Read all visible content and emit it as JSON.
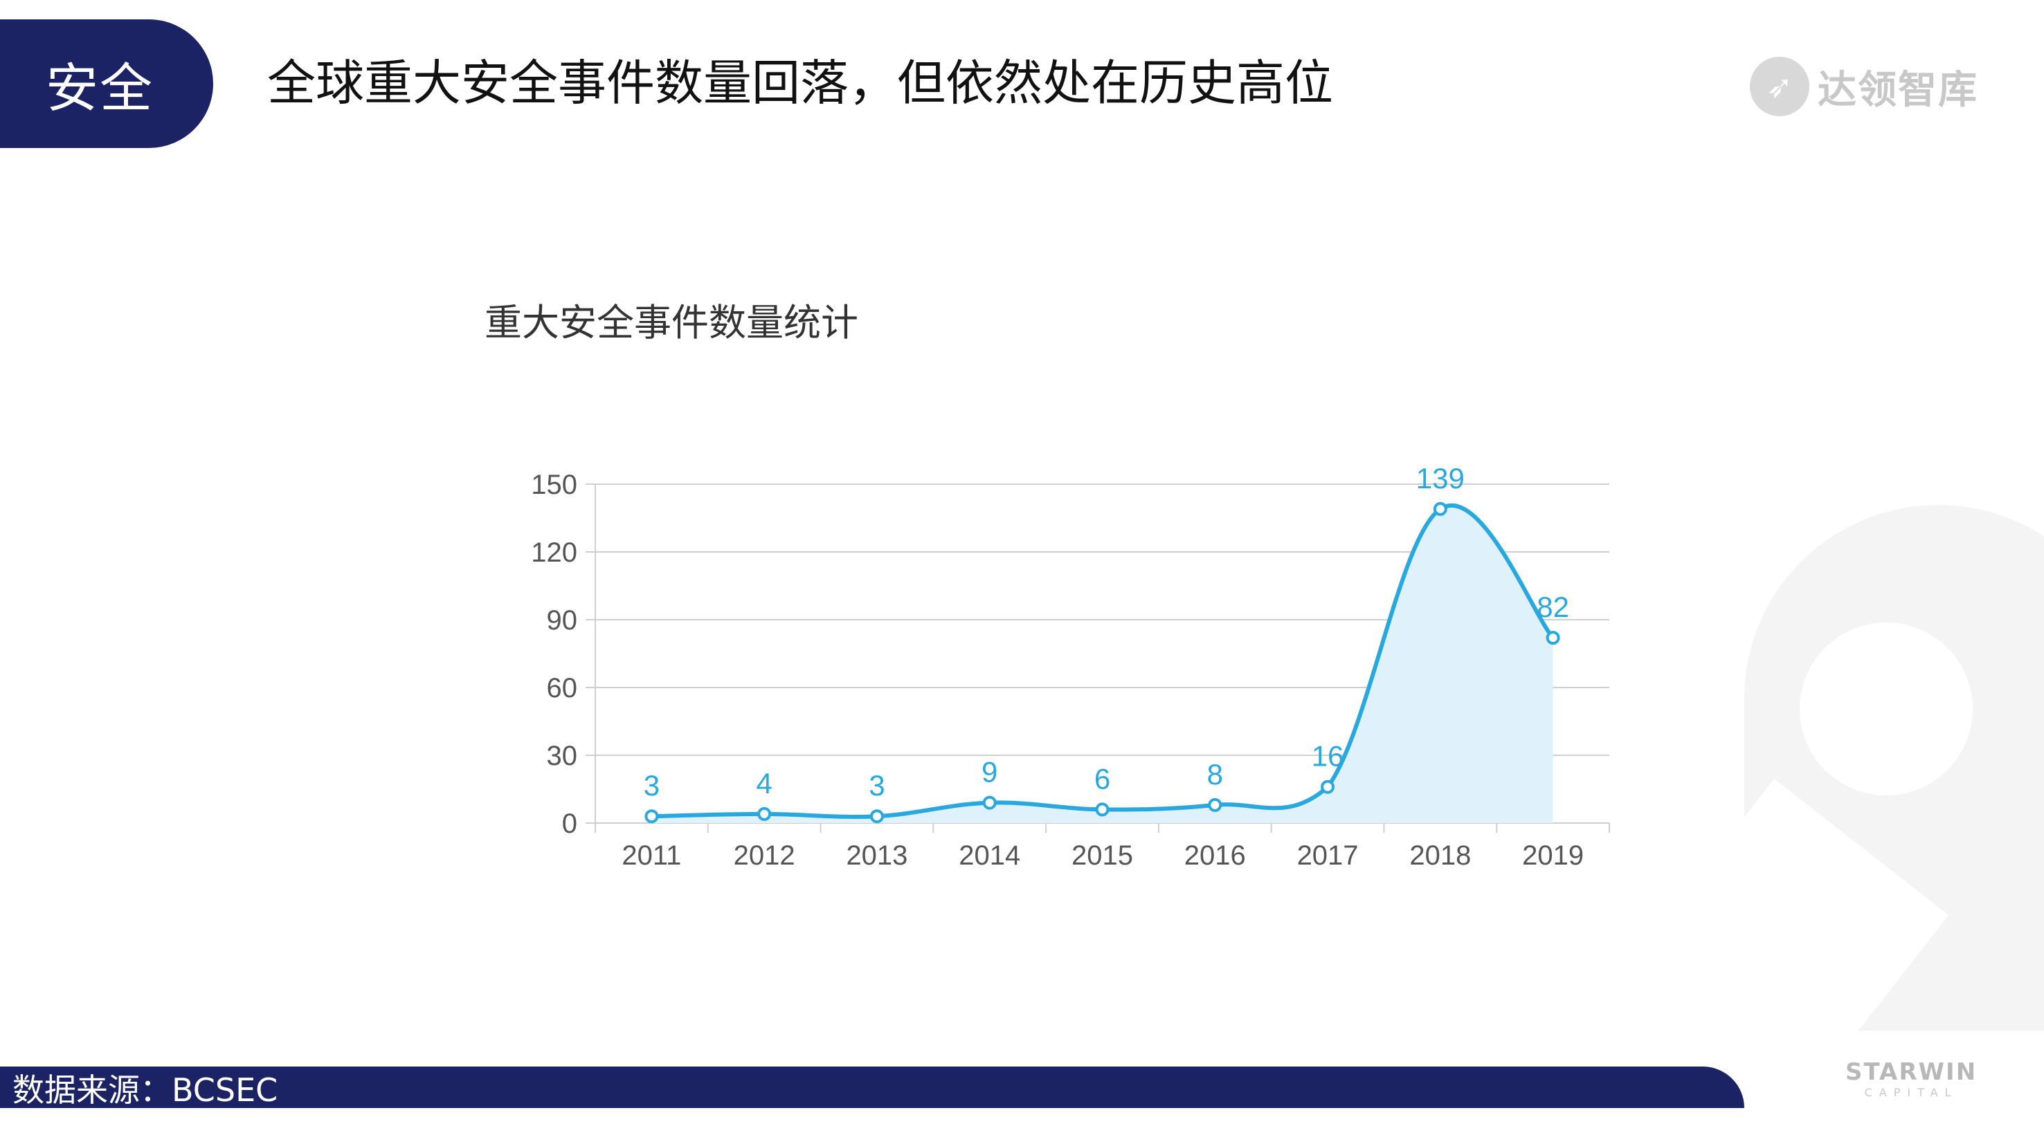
{
  "section_tab": {
    "label": "安全"
  },
  "slide_title": "全球重大安全事件数量回落，但依然处在历史高位",
  "logo_top": {
    "icon": "rocket-icon",
    "text": "达领智库"
  },
  "logo_bottom": {
    "main": "STARWIN",
    "sub": "CAPITAL"
  },
  "footer": {
    "source": "数据来源：BCSEC"
  },
  "colors": {
    "tab_bg": "#1c2365",
    "line": "#29a8e0",
    "area": "#dff2fc",
    "grid": "#cfcfcf",
    "axis_text": "#555555"
  },
  "chart_data": {
    "type": "area",
    "title": "重大安全事件数量统计",
    "categories": [
      "2011",
      "2012",
      "2013",
      "2014",
      "2015",
      "2016",
      "2017",
      "2018",
      "2019"
    ],
    "values": [
      3,
      4,
      3,
      9,
      6,
      8,
      16,
      139,
      82
    ],
    "y_ticks": [
      0,
      30,
      60,
      90,
      120,
      150
    ],
    "ylim": [
      0,
      150
    ],
    "xlabel": "",
    "ylabel": "",
    "grid": true,
    "smooth": true,
    "data_labels": true
  }
}
